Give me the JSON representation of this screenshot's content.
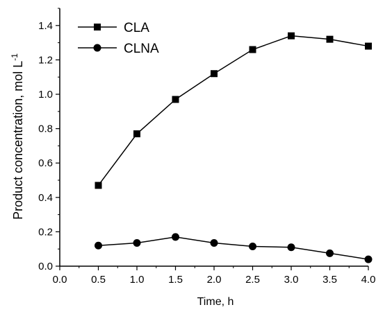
{
  "chart_data": {
    "type": "line",
    "xlabel": "Time, h",
    "ylabel": "Product concentration, mol L",
    "ylabel_superscript": "-1",
    "xlim": [
      0.0,
      4.0
    ],
    "ylim": [
      0.0,
      1.5
    ],
    "x_ticks": [
      "0.0",
      "0.5",
      "1.0",
      "1.5",
      "2.0",
      "2.5",
      "3.0",
      "3.5",
      "4.0"
    ],
    "y_ticks": [
      "0.0",
      "0.2",
      "0.4",
      "0.6",
      "0.8",
      "1.0",
      "1.2",
      "1.4"
    ],
    "grid": false,
    "legend_position": "top-left",
    "x": [
      0.5,
      1.0,
      1.5,
      2.0,
      2.5,
      3.0,
      3.5,
      4.0
    ],
    "series": [
      {
        "name": "CLA",
        "marker": "square",
        "color": "#000000",
        "values": [
          0.47,
          0.77,
          0.97,
          1.12,
          1.26,
          1.34,
          1.32,
          1.28
        ]
      },
      {
        "name": "CLNA",
        "marker": "circle",
        "color": "#000000",
        "values": [
          0.12,
          0.135,
          0.17,
          0.135,
          0.115,
          0.11,
          0.075,
          0.04
        ]
      }
    ]
  }
}
